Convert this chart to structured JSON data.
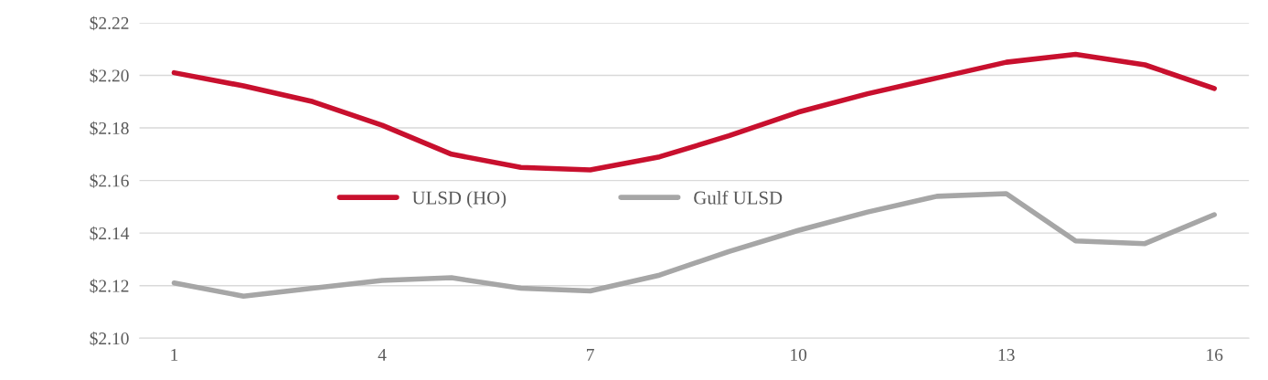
{
  "chart_data": {
    "type": "line",
    "x": [
      1,
      2,
      3,
      4,
      5,
      6,
      7,
      8,
      9,
      10,
      11,
      12,
      13,
      14,
      15,
      16
    ],
    "series": [
      {
        "name": "ULSD (HO)",
        "color": "#c8102e",
        "values": [
          2.201,
          2.196,
          2.19,
          2.181,
          2.17,
          2.165,
          2.164,
          2.169,
          2.177,
          2.186,
          2.193,
          2.199,
          2.205,
          2.208,
          2.204,
          2.195
        ]
      },
      {
        "name": "Gulf ULSD",
        "color": "#a6a6a6",
        "values": [
          2.121,
          2.116,
          2.119,
          2.122,
          2.123,
          2.119,
          2.118,
          2.124,
          2.133,
          2.141,
          2.148,
          2.154,
          2.155,
          2.137,
          2.136,
          2.147
        ]
      }
    ],
    "xlim": [
      0.5,
      16.5
    ],
    "xticks": [
      1,
      4,
      7,
      10,
      13,
      16
    ],
    "ylim": [
      2.1,
      2.22
    ],
    "yticks": [
      {
        "value": 2.1,
        "label": "$2.10"
      },
      {
        "value": 2.12,
        "label": "$2.12"
      },
      {
        "value": 2.14,
        "label": "$2.14"
      },
      {
        "value": 2.16,
        "label": "$2.16"
      },
      {
        "value": 2.18,
        "label": "$2.18"
      },
      {
        "value": 2.2,
        "label": "$2.20"
      },
      {
        "value": 2.22,
        "label": "$2.22"
      }
    ],
    "grid": "y",
    "legend": "center",
    "marker": "none",
    "line_style": "solid"
  }
}
